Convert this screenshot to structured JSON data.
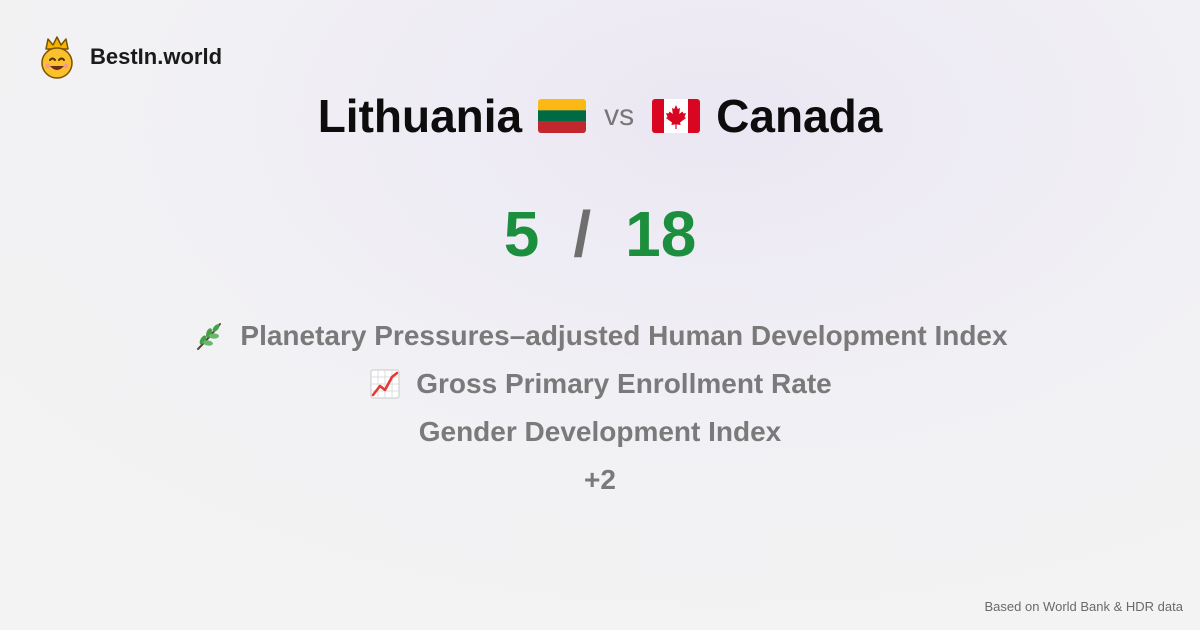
{
  "brand": {
    "name": "BestIn.world",
    "logo_icon": "crowned-smiley-icon"
  },
  "comparison": {
    "country_a": {
      "name": "Lithuania",
      "flag_icon": "lithuania-flag-icon",
      "flag_colors": [
        "#FDB913",
        "#006A44",
        "#C1272D"
      ]
    },
    "vs_label": "vs",
    "country_b": {
      "name": "Canada",
      "flag_icon": "canada-flag-icon",
      "flag_colors": [
        "#D80621",
        "#FFFFFF"
      ]
    }
  },
  "score": {
    "a": "5",
    "separator": "/",
    "b": "18",
    "color": "#1c8f3e"
  },
  "metrics": [
    {
      "icon": "herb-icon",
      "label": "Planetary Pressures–adjusted Human Development Index"
    },
    {
      "icon": "chart-increasing-icon",
      "label": "Gross Primary Enrollment Rate"
    },
    {
      "icon": "",
      "label": "Gender Development Index"
    },
    {
      "icon": "",
      "label": "+2"
    }
  ],
  "footer": {
    "source": "Based on World Bank & HDR data"
  }
}
